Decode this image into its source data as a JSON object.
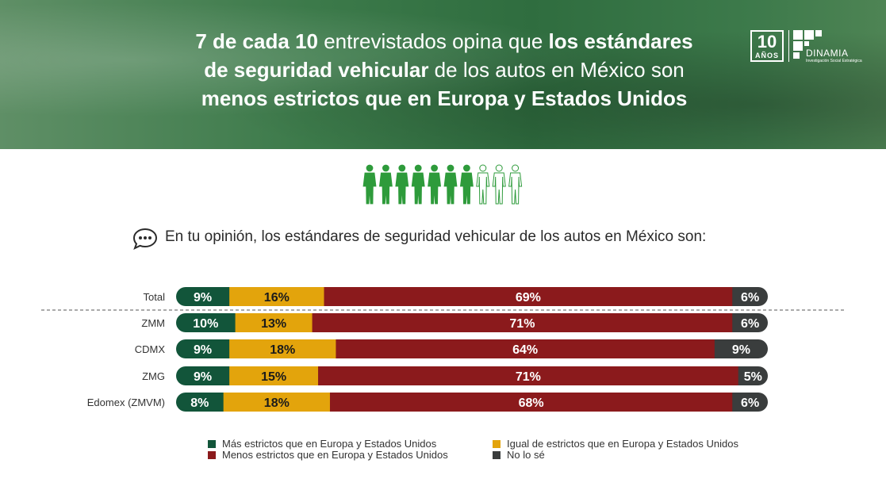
{
  "header": {
    "line1_bold_a": "7 de cada 10",
    "line1_reg": " entrevistados opina que ",
    "line1_bold_b": "los estándares",
    "line2_bold": "de seguridad vehicular",
    "line2_reg": " de los autos en México son",
    "line3_bold": "menos estrictos que en Europa y Estados Unidos"
  },
  "logo": {
    "number": "10",
    "years": "AÑOS",
    "brand": "DINAMIA",
    "tagline": "Investigación Social Estratégica"
  },
  "people": {
    "total": 10,
    "highlighted": 7
  },
  "question": "En tu opinión, los estándares de seguridad vehicular de los autos en México son:",
  "colors": {
    "more_strict": "#12553a",
    "equal": "#e3a40c",
    "less_strict": "#8b1a1c",
    "dont_know": "#3a3d3d",
    "people": "#2e9b3b"
  },
  "chart_data": {
    "type": "bar",
    "orientation": "horizontal",
    "stacked": true,
    "unit": "%",
    "categories": [
      "Total",
      "ZMM",
      "CDMX",
      "ZMG",
      "Edomex (ZMVM)"
    ],
    "series": [
      {
        "name": "Más estrictos que en Europa y Estados Unidos",
        "key": "more_strict",
        "values": [
          9,
          10,
          9,
          9,
          8
        ]
      },
      {
        "name": "Igual de estrictos que en Europa y Estados Unidos",
        "key": "equal",
        "values": [
          16,
          13,
          18,
          15,
          18
        ]
      },
      {
        "name": "Menos estrictos que en Europa y Estados Unidos",
        "key": "less_strict",
        "values": [
          69,
          71,
          64,
          71,
          68
        ]
      },
      {
        "name": "No lo sé",
        "key": "dont_know",
        "values": [
          6,
          6,
          9,
          5,
          6
        ]
      }
    ]
  },
  "legend": {
    "more_strict": "Más estrictos que en Europa y Estados Unidos",
    "less_strict": "Menos estrictos que en Europa y Estados Unidos",
    "equal": "Igual de estrictos que en Europa y Estados Unidos",
    "dont_know": "No lo sé"
  }
}
